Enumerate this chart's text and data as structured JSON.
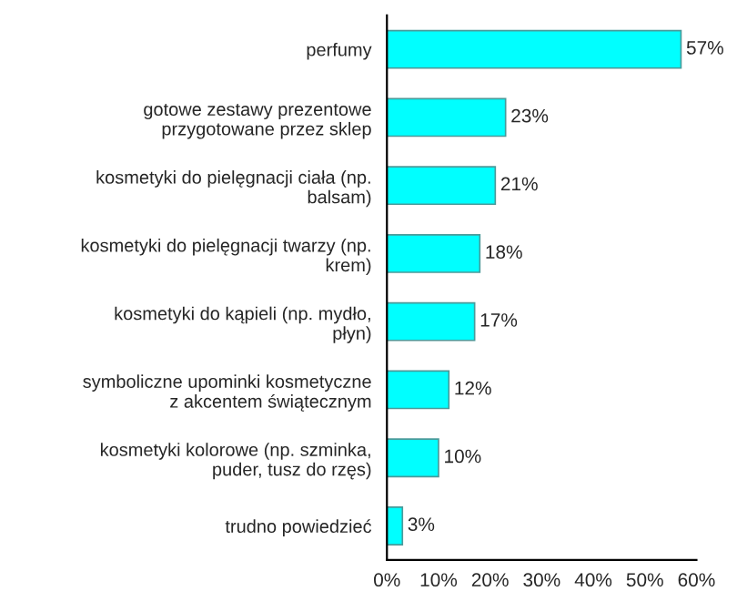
{
  "chart_data": {
    "type": "bar",
    "orientation": "horizontal",
    "categories": [
      "perfumy",
      "gotowe zestawy prezentowe\nprzygotowane przez sklep",
      "kosmetyki do pielęgnacji ciała (np.\nbalsam)",
      "kosmetyki do pielęgnacji twarzy (np.\nkrem)",
      "kosmetyki do kąpieli (np. mydło,\npłyn)",
      "symboliczne upominki kosmetyczne\nz akcentem świątecznym",
      "kosmetyki kolorowe (np. szminka,\npuder, tusz do rzęs)",
      "trudno powiedzieć"
    ],
    "values": [
      57,
      23,
      21,
      18,
      17,
      12,
      10,
      3
    ],
    "value_labels": [
      "57%",
      "23%",
      "21%",
      "18%",
      "17%",
      "12%",
      "10%",
      "3%"
    ],
    "color": "#00ffff",
    "xlim": [
      0,
      60
    ],
    "xticks": [
      {
        "value": 0,
        "label": "0%"
      },
      {
        "value": 10,
        "label": "10%"
      },
      {
        "value": 20,
        "label": "20%"
      },
      {
        "value": 30,
        "label": "30%"
      },
      {
        "value": 40,
        "label": "40%"
      },
      {
        "value": 50,
        "label": "50%"
      },
      {
        "value": 60,
        "label": "60%"
      }
    ],
    "grid": false,
    "legend": false
  }
}
